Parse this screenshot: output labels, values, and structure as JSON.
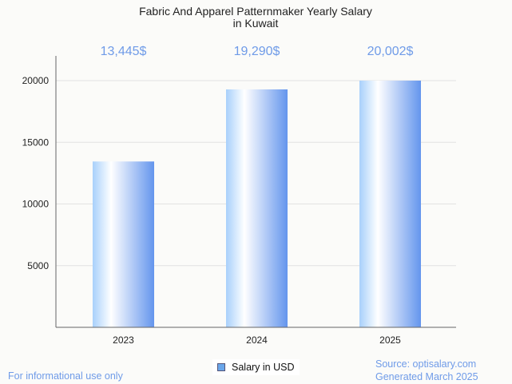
{
  "chart_data": {
    "type": "bar",
    "title_lines": [
      "Fabric And Apparel Patternmaker Yearly Salary",
      "in Kuwait"
    ],
    "categories": [
      "2023",
      "2024",
      "2025"
    ],
    "values": [
      13445,
      19290,
      20002
    ],
    "data_labels": [
      "13,445$",
      "19,290$",
      "20,002$"
    ],
    "yticks": [
      5000,
      10000,
      15000,
      20000
    ],
    "ytick_labels": [
      "5000",
      "10000",
      "15000",
      "20000"
    ],
    "ylim": [
      0,
      20000
    ],
    "legend": "Salary in USD",
    "grid": true
  },
  "footer": {
    "left": "For informational use only",
    "source": "Source: optisalary.com",
    "generated": "Generated March 2025"
  },
  "colors": {
    "accent": "#6f9be8",
    "bar_dark": "#6495ed",
    "bar_light": "#ffffff"
  }
}
